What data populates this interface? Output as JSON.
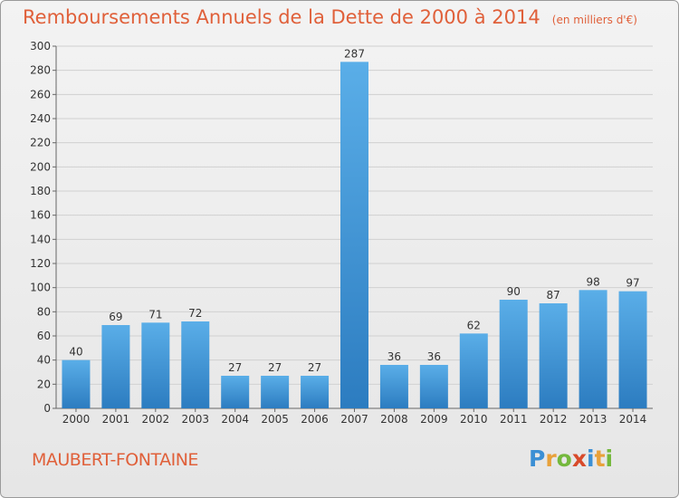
{
  "title": "Remboursements Annuels de la Dette de 2000 à 2014",
  "subtitle": "(en milliers d'€)",
  "commune": "MAUBERT-FONTAINE",
  "logo": {
    "letters": [
      "P",
      "r",
      "o",
      "x",
      "i",
      "t",
      "i"
    ],
    "colors": [
      "#3b8fd4",
      "#e8a13a",
      "#74b83c",
      "#d84a2a",
      "#3b8fd4",
      "#e8a13a",
      "#74b83c"
    ]
  },
  "colors": {
    "bar_top": "#5aaee8",
    "bar_bottom": "#2c7cc0",
    "text_orange": "#e0603a"
  },
  "chart_data": {
    "type": "bar",
    "categories": [
      "2000",
      "2001",
      "2002",
      "2003",
      "2004",
      "2005",
      "2006",
      "2007",
      "2008",
      "2009",
      "2010",
      "2011",
      "2012",
      "2013",
      "2014"
    ],
    "values": [
      40,
      69,
      71,
      72,
      27,
      27,
      27,
      287,
      36,
      36,
      62,
      90,
      87,
      98,
      97
    ],
    "data_labels": [
      "40",
      "69",
      "71",
      "72",
      "27",
      "27",
      "27",
      "287",
      "36",
      "36",
      "62",
      "90",
      "87",
      "98",
      "97"
    ],
    "yticks": [
      0,
      20,
      40,
      60,
      80,
      100,
      120,
      140,
      160,
      180,
      200,
      220,
      240,
      260,
      280,
      300
    ],
    "ylim": [
      0,
      300
    ],
    "grid": true
  }
}
